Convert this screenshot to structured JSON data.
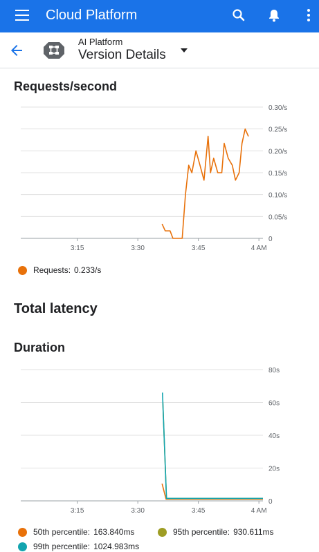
{
  "appbar": {
    "title": "Cloud Platform",
    "menu_icon": "hamburger-menu-icon",
    "search_icon": "search-icon",
    "notifications_icon": "bell-icon",
    "more_icon": "more-vert-icon",
    "bg_color": "#1a73e8"
  },
  "subheader": {
    "back_icon": "arrow-back-icon",
    "product_icon": "ai-platform-brain-icon",
    "product": "AI Platform",
    "title": "Version Details",
    "dropdown_icon": "caret-down-icon"
  },
  "requests_section": {
    "title": "Requests/second",
    "legend": [
      {
        "name": "Requests:",
        "value": "0.233/s",
        "color": "#e8710a"
      }
    ]
  },
  "latency_section": {
    "title": "Total latency"
  },
  "duration_section": {
    "title": "Duration",
    "legend": [
      {
        "name": "50th percentile:",
        "value": "163.840ms",
        "color": "#e8710a"
      },
      {
        "name": "95th percentile:",
        "value": "930.611ms",
        "color": "#9e9d24"
      },
      {
        "name": "99th percentile:",
        "value": "1024.983ms",
        "color": "#12a4af"
      }
    ]
  },
  "chart_data": [
    {
      "type": "line",
      "title": "Requests/second",
      "x_ticks": [
        "3:15",
        "3:30",
        "3:45",
        "4 AM"
      ],
      "x_tick_minutes": [
        15,
        30,
        45,
        60
      ],
      "x_range_minutes": [
        1,
        61
      ],
      "y_ticks": [
        "0",
        "0.05/s",
        "0.10/s",
        "0.15/s",
        "0.20/s",
        "0.25/s",
        "0.30/s"
      ],
      "ylim": [
        0,
        0.3
      ],
      "grid": true,
      "legend_position": "bottom-left",
      "series": [
        {
          "name": "Requests",
          "color": "#e8710a",
          "x": [
            36,
            36.8,
            38,
            38.7,
            40.2,
            41,
            41.8,
            42.6,
            43.4,
            44.4,
            45.4,
            46.4,
            47.4,
            48,
            48.8,
            49.8,
            50.8,
            51.4,
            52.4,
            53.4,
            54.2,
            55.1,
            55.8,
            56.6,
            57.4
          ],
          "values": [
            0.033,
            0.017,
            0.017,
            0,
            0,
            0,
            0.1,
            0.167,
            0.15,
            0.2,
            0.167,
            0.133,
            0.233,
            0.15,
            0.183,
            0.15,
            0.15,
            0.217,
            0.183,
            0.167,
            0.133,
            0.15,
            0.217,
            0.25,
            0.233
          ]
        }
      ]
    },
    {
      "type": "line",
      "title": "Duration",
      "x_ticks": [
        "3:15",
        "3:30",
        "3:45",
        "4 AM"
      ],
      "x_tick_minutes": [
        15,
        30,
        45,
        60
      ],
      "x_range_minutes": [
        1,
        61
      ],
      "y_ticks": [
        "0",
        "20s",
        "40s",
        "60s",
        "80s"
      ],
      "ylim": [
        0,
        80
      ],
      "grid": true,
      "legend_position": "bottom",
      "series": [
        {
          "name": "50th percentile",
          "color": "#e8710a",
          "x": [
            36,
            37,
            61
          ],
          "values": [
            10.5,
            1,
            1
          ]
        },
        {
          "name": "95th percentile",
          "color": "#9e9d24",
          "x": [
            36.2,
            37.1,
            61
          ],
          "values": [
            60,
            1.5,
            1.5
          ]
        },
        {
          "name": "99th percentile",
          "color": "#12a4af",
          "x": [
            36.1,
            37.1,
            61
          ],
          "values": [
            66,
            1.5,
            1.5
          ]
        }
      ]
    }
  ]
}
